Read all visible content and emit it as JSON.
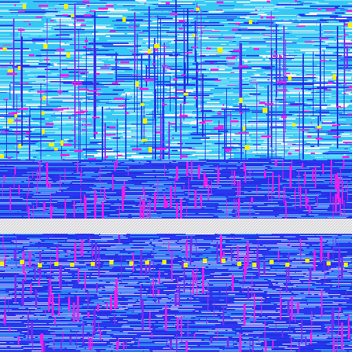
{
  "viewer": {
    "content": "ic-layout-render",
    "visible_text": []
  },
  "palette": {
    "background": "#1e2ad8",
    "metal_blue": "#2a36f0",
    "metal_cyan": "#36c8f4",
    "light_cyan": "#8ee6fa",
    "magenta": "#f01ee6",
    "violet": "#7a2cf0",
    "yellow": "#f2f20a",
    "white": "#f4f4f4",
    "hatch_gray": "#c8c8cc"
  },
  "regions": [
    {
      "name": "upper-core",
      "fill": "cyan-dominant"
    },
    {
      "name": "upper-lower-band",
      "fill": "blue-magenta-dominant"
    },
    {
      "name": "blank-channel",
      "fill": "hatched-white"
    },
    {
      "name": "lower-core",
      "fill": "blue-dominant"
    }
  ]
}
